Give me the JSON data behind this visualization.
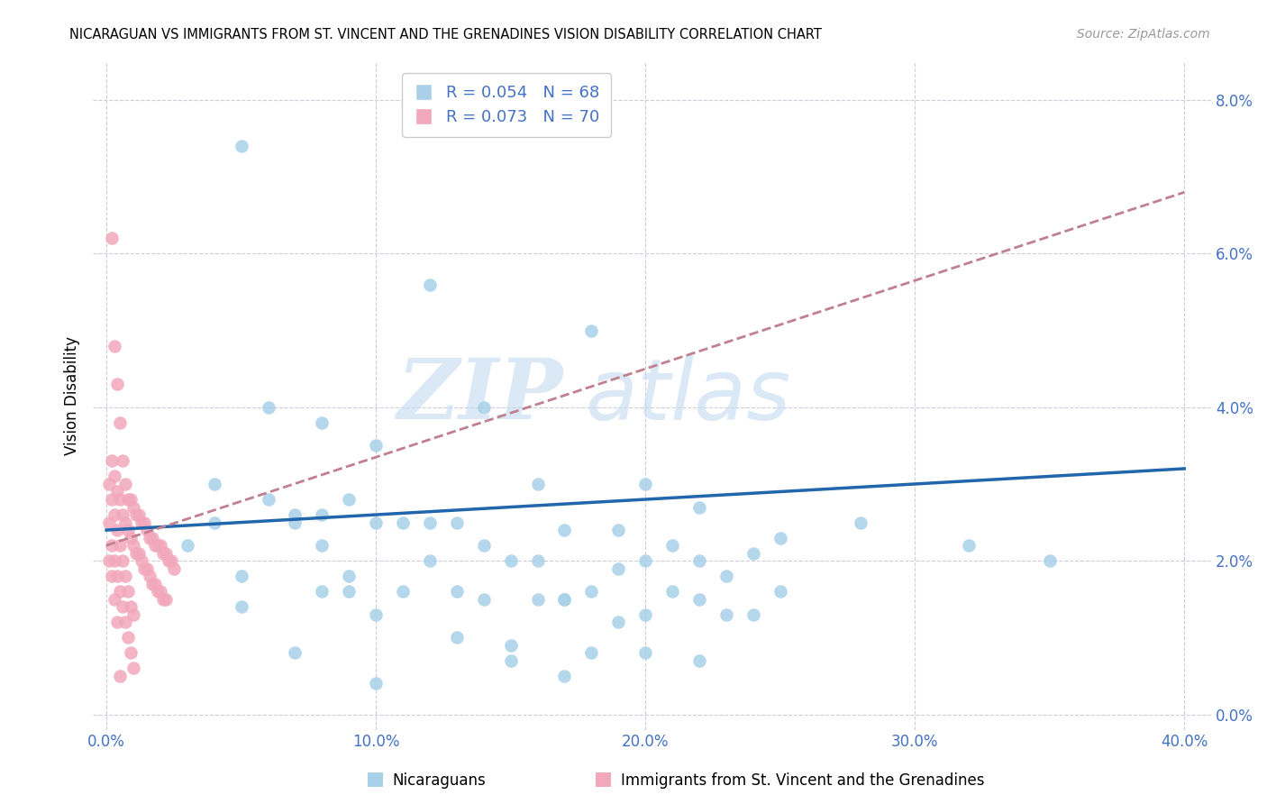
{
  "title": "NICARAGUAN VS IMMIGRANTS FROM ST. VINCENT AND THE GRENADINES VISION DISABILITY CORRELATION CHART",
  "source": "Source: ZipAtlas.com",
  "xlabel_ticks": [
    "0.0%",
    "10.0%",
    "20.0%",
    "30.0%",
    "40.0%"
  ],
  "xlabel_tick_vals": [
    0.0,
    0.1,
    0.2,
    0.3,
    0.4
  ],
  "ylabel_ticks": [
    "0.0%",
    "2.0%",
    "4.0%",
    "6.0%",
    "8.0%"
  ],
  "ylabel_tick_vals": [
    0.0,
    0.02,
    0.04,
    0.06,
    0.08
  ],
  "xlim": [
    -0.005,
    0.41
  ],
  "ylim": [
    -0.002,
    0.085
  ],
  "legend_label1": "Nicaraguans",
  "legend_label2": "Immigrants from St. Vincent and the Grenadines",
  "legend_R1": "R = 0.054",
  "legend_N1": "N = 68",
  "legend_R2": "R = 0.073",
  "legend_N2": "N = 70",
  "color_blue": "#A8D0E8",
  "color_pink": "#F2A8BC",
  "color_blue_line": "#2166AC",
  "color_pink_line": "#C08090",
  "color_blue_text": "#4472C4",
  "color_grid": "#CCCCDD",
  "watermark1": "ZIP",
  "watermark2": "atlas",
  "blue_scatter_x": [
    0.05,
    0.12,
    0.18,
    0.08,
    0.14,
    0.2,
    0.06,
    0.1,
    0.16,
    0.22,
    0.04,
    0.09,
    0.13,
    0.19,
    0.25,
    0.07,
    0.11,
    0.17,
    0.21,
    0.24,
    0.03,
    0.08,
    0.12,
    0.16,
    0.2,
    0.05,
    0.09,
    0.15,
    0.19,
    0.23,
    0.06,
    0.1,
    0.14,
    0.18,
    0.22,
    0.04,
    0.08,
    0.13,
    0.17,
    0.21,
    0.07,
    0.11,
    0.16,
    0.2,
    0.25,
    0.09,
    0.14,
    0.19,
    0.23,
    0.05,
    0.1,
    0.15,
    0.2,
    0.12,
    0.17,
    0.22,
    0.08,
    0.13,
    0.35,
    0.32,
    0.28,
    0.18,
    0.24,
    0.07,
    0.15,
    0.22,
    0.1,
    0.17
  ],
  "blue_scatter_y": [
    0.074,
    0.056,
    0.05,
    0.038,
    0.04,
    0.03,
    0.04,
    0.035,
    0.03,
    0.027,
    0.03,
    0.028,
    0.025,
    0.024,
    0.023,
    0.026,
    0.025,
    0.024,
    0.022,
    0.021,
    0.022,
    0.022,
    0.02,
    0.02,
    0.02,
    0.018,
    0.018,
    0.02,
    0.019,
    0.018,
    0.028,
    0.025,
    0.022,
    0.016,
    0.015,
    0.025,
    0.026,
    0.016,
    0.015,
    0.016,
    0.025,
    0.016,
    0.015,
    0.013,
    0.016,
    0.016,
    0.015,
    0.012,
    0.013,
    0.014,
    0.013,
    0.009,
    0.008,
    0.025,
    0.015,
    0.02,
    0.016,
    0.01,
    0.02,
    0.022,
    0.025,
    0.008,
    0.013,
    0.008,
    0.007,
    0.007,
    0.004,
    0.005
  ],
  "pink_scatter_x": [
    0.002,
    0.003,
    0.004,
    0.005,
    0.006,
    0.007,
    0.008,
    0.009,
    0.01,
    0.011,
    0.012,
    0.013,
    0.014,
    0.015,
    0.016,
    0.017,
    0.018,
    0.019,
    0.02,
    0.021,
    0.022,
    0.023,
    0.024,
    0.025,
    0.002,
    0.003,
    0.004,
    0.005,
    0.006,
    0.007,
    0.008,
    0.009,
    0.01,
    0.011,
    0.012,
    0.013,
    0.014,
    0.015,
    0.016,
    0.017,
    0.018,
    0.019,
    0.02,
    0.021,
    0.022,
    0.001,
    0.002,
    0.003,
    0.004,
    0.005,
    0.006,
    0.007,
    0.008,
    0.009,
    0.01,
    0.001,
    0.002,
    0.003,
    0.004,
    0.005,
    0.006,
    0.007,
    0.008,
    0.009,
    0.01,
    0.001,
    0.002,
    0.003,
    0.004,
    0.005
  ],
  "pink_scatter_y": [
    0.062,
    0.048,
    0.043,
    0.038,
    0.033,
    0.03,
    0.028,
    0.028,
    0.027,
    0.026,
    0.026,
    0.025,
    0.025,
    0.024,
    0.023,
    0.023,
    0.022,
    0.022,
    0.022,
    0.021,
    0.021,
    0.02,
    0.02,
    0.019,
    0.033,
    0.031,
    0.029,
    0.028,
    0.026,
    0.025,
    0.024,
    0.023,
    0.022,
    0.021,
    0.021,
    0.02,
    0.019,
    0.019,
    0.018,
    0.017,
    0.017,
    0.016,
    0.016,
    0.015,
    0.015,
    0.03,
    0.028,
    0.026,
    0.024,
    0.022,
    0.02,
    0.018,
    0.016,
    0.014,
    0.013,
    0.025,
    0.022,
    0.02,
    0.018,
    0.016,
    0.014,
    0.012,
    0.01,
    0.008,
    0.006,
    0.02,
    0.018,
    0.015,
    0.012,
    0.005
  ],
  "blue_line_x": [
    0.0,
    0.4
  ],
  "blue_line_y": [
    0.024,
    0.032
  ],
  "pink_line_x": [
    0.0,
    0.4
  ],
  "pink_line_y": [
    0.022,
    0.068
  ]
}
